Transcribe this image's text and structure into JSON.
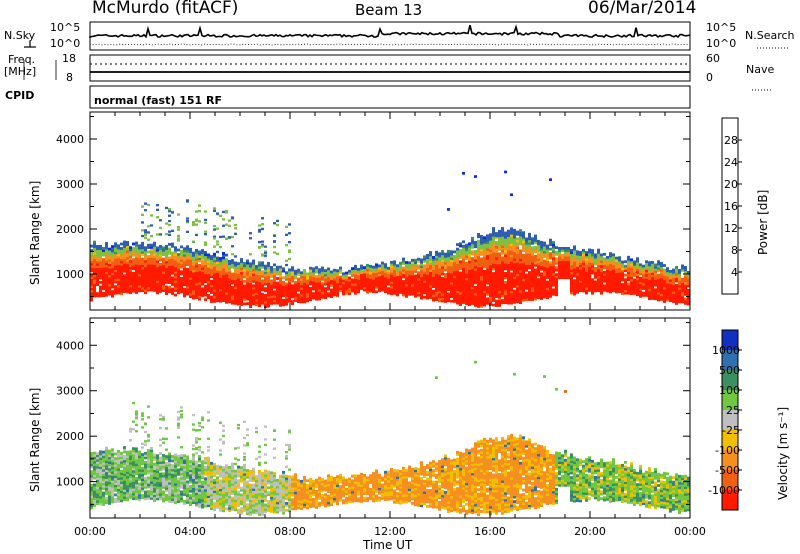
{
  "header": {
    "station": "McMurdo (fitACF)",
    "beam": "Beam 13",
    "date": "06/Mar/2014"
  },
  "strip": {
    "nsky_label": "N.Sky",
    "nsky_top": "10^5",
    "nsky_bottom": "10^0",
    "nsearch_label": "N.Search",
    "nsearch_top": "10^5",
    "nsearch_bottom": "10^0",
    "freq_label": "Freq.",
    "freq_unit": "[MHz]",
    "freq_top": "18",
    "freq_bottom": "8",
    "nave_label": "Nave",
    "nave_top": "60",
    "nave_bottom": "0",
    "cpid_label": "CPID",
    "mode_text": "normal (fast) 151 RF"
  },
  "chart_data": [
    {
      "type": "heatmap",
      "panel": "power",
      "ylabel": "Slant Range [km]",
      "ylim": [
        200,
        4600
      ],
      "xlim_hours": [
        0,
        24
      ],
      "ytick_labels": [
        "1000",
        "2000",
        "3000",
        "4000"
      ],
      "colorbar_label": "Power [dB]",
      "colorbar_ticks": [
        "4",
        "8",
        "12",
        "16",
        "20",
        "24",
        "28"
      ],
      "colorbar_colors": [
        "#0a2fe0",
        "#2f5fb0",
        "#3a8f6a",
        "#7ec040",
        "#f0c000",
        "#f59020",
        "#f06010",
        "#ff1a00"
      ]
    },
    {
      "type": "heatmap",
      "panel": "velocity",
      "ylabel": "Slant Range [km]",
      "ylim": [
        200,
        4600
      ],
      "xlim_hours": [
        0,
        24
      ],
      "ytick_labels": [
        "1000",
        "2000",
        "3000",
        "4000"
      ],
      "colorbar_label": "Velocity [m s⁻¹]",
      "colorbar_ticks": [
        "1000",
        "500",
        "100",
        "25",
        "-25",
        "-100",
        "-500",
        "-1000"
      ],
      "colorbar_colors": [
        "#1030c0",
        "#2f70b0",
        "#3a9060",
        "#70c840",
        "#bfbfbf",
        "#f0c000",
        "#f59020",
        "#f06010",
        "#ff1a00"
      ]
    }
  ],
  "xaxis": {
    "ticks": [
      "00:00",
      "04:00",
      "08:00",
      "12:00",
      "16:00",
      "20:00",
      "00:00"
    ],
    "label": "Time UT"
  }
}
